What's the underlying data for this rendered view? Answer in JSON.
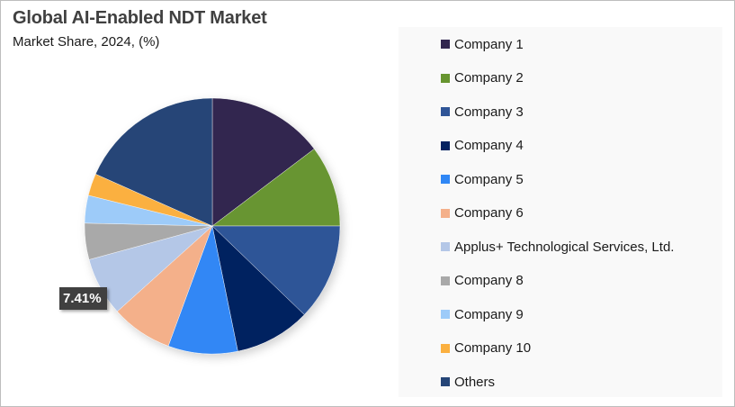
{
  "header": {
    "title": "Global AI-Enabled NDT Market",
    "subtitle": "Market Share, 2024, (%)"
  },
  "data_label": {
    "text": "7.41%",
    "target": "Applus+ Technological Services, Ltd."
  },
  "legend": {
    "items": [
      {
        "label": "Company 1",
        "color": "#32264f"
      },
      {
        "label": "Company 2",
        "color": "#679530"
      },
      {
        "label": "Company 3",
        "color": "#2f5597"
      },
      {
        "label": "Company 4",
        "color": "#032160"
      },
      {
        "label": "Company 5",
        "color": "#3087f5"
      },
      {
        "label": "Company 6",
        "color": "#f4b08a"
      },
      {
        "label": "Applus+ Technological Services, Ltd.",
        "color": "#b4c7e7"
      },
      {
        "label": "Company 8",
        "color": "#a9a9a9"
      },
      {
        "label": "Company 9",
        "color": "#9dcbf9"
      },
      {
        "label": "Company 10",
        "color": "#fbb040"
      },
      {
        "label": "Others",
        "color": "#254577"
      }
    ]
  },
  "chart_data": {
    "type": "pie",
    "title": "Global AI-Enabled NDT Market",
    "subtitle": "Market Share, 2024, (%)",
    "categories": [
      "Company 1",
      "Company 2",
      "Company 3",
      "Company 4",
      "Company 5",
      "Company 6",
      "Applus+ Technological Services, Ltd.",
      "Company 8",
      "Company 9",
      "Company 10",
      "Others"
    ],
    "values": [
      14.7,
      10.3,
      12.2,
      9.6,
      8.8,
      7.75,
      7.41,
      4.6,
      3.5,
      2.8,
      18.34
    ],
    "colors": [
      "#32264f",
      "#679530",
      "#2f5597",
      "#032160",
      "#3087f5",
      "#f4b08a",
      "#b4c7e7",
      "#a9a9a9",
      "#9dcbf9",
      "#fbb040",
      "#254577"
    ],
    "start_angle_deg": 0,
    "direction": "clockwise",
    "data_labels": [
      {
        "category": "Applus+ Technological Services, Ltd.",
        "text": "7.41%"
      }
    ],
    "legend_position": "right"
  }
}
